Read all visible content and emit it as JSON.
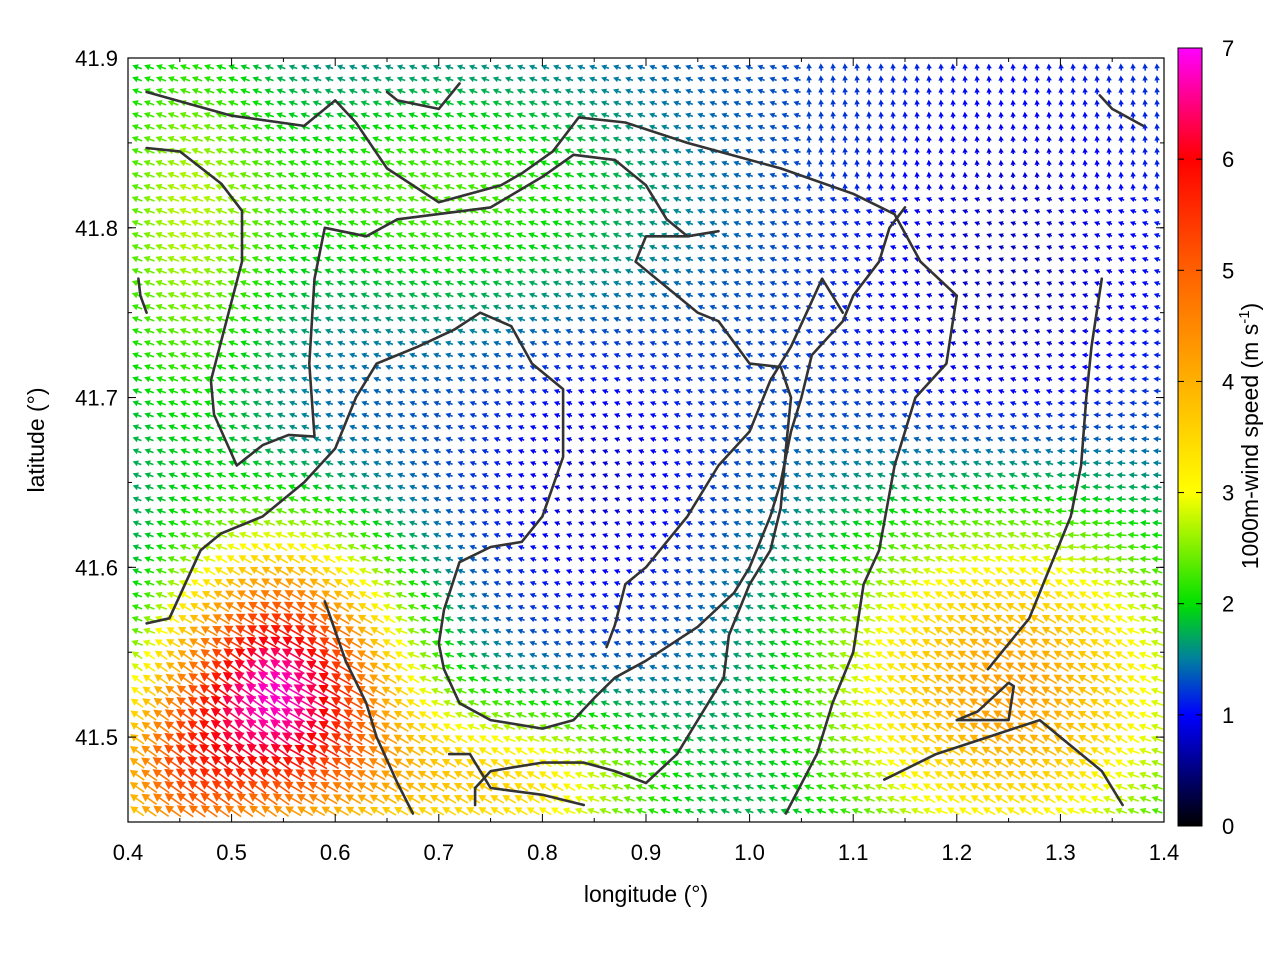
{
  "chart_data": {
    "type": "vector-field",
    "xlabel": "longitude (°)",
    "ylabel": "latitude (°)",
    "colorbar_label_main": "1000m-wind speed (m s",
    "colorbar_label_sup": "-1",
    "colorbar_label_end": ")",
    "xlim": [
      0.4,
      1.4
    ],
    "ylim": [
      41.45,
      41.9
    ],
    "clim": [
      0,
      7
    ],
    "xticks": [
      "0.4",
      "0.5",
      "0.6",
      "0.7",
      "0.8",
      "0.9",
      "1.0",
      "1.1",
      "1.2",
      "1.3",
      "1.4"
    ],
    "yticks": [
      "41.5",
      "41.6",
      "41.7",
      "41.8",
      "41.9"
    ],
    "cticks": [
      "0",
      "1",
      "2",
      "3",
      "4",
      "5",
      "6",
      "7"
    ],
    "colormap": [
      {
        "v": 0,
        "color": "#000000"
      },
      {
        "v": 1,
        "color": "#0000ff"
      },
      {
        "v": 1.5,
        "color": "#007f9f"
      },
      {
        "v": 2,
        "color": "#00e000"
      },
      {
        "v": 2.5,
        "color": "#80f000"
      },
      {
        "v": 3,
        "color": "#ffff00"
      },
      {
        "v": 4,
        "color": "#ffb000"
      },
      {
        "v": 5,
        "color": "#ff6000"
      },
      {
        "v": 6,
        "color": "#ff0000"
      },
      {
        "v": 7,
        "color": "#ff00ff"
      }
    ],
    "grid": false,
    "legend": "colorbar-right",
    "contours": [
      [
        [
          0.418,
          41.88
        ],
        [
          0.5,
          41.866
        ],
        [
          0.57,
          41.86
        ],
        [
          0.6,
          41.875
        ],
        [
          0.62,
          41.862
        ],
        [
          0.65,
          41.835
        ],
        [
          0.7,
          41.815
        ],
        [
          0.76,
          41.825
        ],
        [
          0.78,
          41.832
        ],
        [
          0.81,
          41.845
        ],
        [
          0.835,
          41.865
        ],
        [
          0.88,
          41.862
        ],
        [
          0.94,
          41.85
        ],
        [
          1.03,
          41.835
        ],
        [
          1.1,
          41.82
        ],
        [
          1.14,
          41.808
        ],
        [
          1.165,
          41.78
        ],
        [
          1.2,
          41.76
        ],
        [
          1.19,
          41.72
        ],
        [
          1.16,
          41.7
        ],
        [
          1.14,
          41.66
        ],
        [
          1.125,
          41.61
        ],
        [
          1.11,
          41.59
        ],
        [
          1.1,
          41.55
        ],
        [
          1.08,
          41.52
        ],
        [
          1.065,
          41.49
        ],
        [
          1.035,
          41.455
        ]
      ],
      [
        [
          0.418,
          41.847
        ],
        [
          0.45,
          41.845
        ],
        [
          0.49,
          41.826
        ],
        [
          0.51,
          41.81
        ],
        [
          0.51,
          41.78
        ],
        [
          0.495,
          41.745
        ],
        [
          0.48,
          41.71
        ],
        [
          0.483,
          41.69
        ],
        [
          0.505,
          41.66
        ],
        [
          0.53,
          41.672
        ],
        [
          0.555,
          41.678
        ],
        [
          0.58,
          41.677
        ],
        [
          0.575,
          41.72
        ],
        [
          0.58,
          41.77
        ],
        [
          0.59,
          41.8
        ],
        [
          0.63,
          41.795
        ],
        [
          0.66,
          41.805
        ],
        [
          0.75,
          41.812
        ],
        [
          0.8,
          41.83
        ],
        [
          0.83,
          41.843
        ],
        [
          0.87,
          41.84
        ],
        [
          0.9,
          41.825
        ],
        [
          0.92,
          41.805
        ],
        [
          0.94,
          41.795
        ],
        [
          0.97,
          41.798
        ],
        [
          0.94,
          41.795
        ],
        [
          0.9,
          41.795
        ],
        [
          0.89,
          41.78
        ],
        [
          0.91,
          41.77
        ],
        [
          0.95,
          41.75
        ],
        [
          0.97,
          41.745
        ],
        [
          1.0,
          41.72
        ],
        [
          1.03,
          41.718
        ],
        [
          1.04,
          41.7
        ],
        [
          1.035,
          41.67
        ],
        [
          1.03,
          41.635
        ],
        [
          1.02,
          41.61
        ],
        [
          1.0,
          41.59
        ],
        [
          0.98,
          41.56
        ],
        [
          0.975,
          41.535
        ],
        [
          0.95,
          41.51
        ],
        [
          0.93,
          41.49
        ],
        [
          0.9,
          41.473
        ],
        [
          0.87,
          41.48
        ],
        [
          0.84,
          41.485
        ],
        [
          0.8,
          41.485
        ],
        [
          0.75,
          41.48
        ],
        [
          0.735,
          41.47
        ],
        [
          0.735,
          41.46
        ]
      ],
      [
        [
          0.418,
          41.567
        ],
        [
          0.44,
          41.57
        ],
        [
          0.47,
          41.61
        ],
        [
          0.49,
          41.62
        ],
        [
          0.53,
          41.63
        ],
        [
          0.57,
          41.65
        ],
        [
          0.6,
          41.67
        ],
        [
          0.62,
          41.7
        ],
        [
          0.64,
          41.72
        ],
        [
          0.68,
          41.73
        ],
        [
          0.715,
          41.74
        ],
        [
          0.74,
          41.75
        ],
        [
          0.77,
          41.742
        ],
        [
          0.79,
          41.72
        ],
        [
          0.82,
          41.705
        ],
        [
          0.82,
          41.665
        ],
        [
          0.8,
          41.63
        ],
        [
          0.78,
          41.615
        ],
        [
          0.75,
          41.612
        ],
        [
          0.72,
          41.603
        ],
        [
          0.705,
          41.575
        ],
        [
          0.7,
          41.555
        ],
        [
          0.705,
          41.54
        ],
        [
          0.72,
          41.52
        ],
        [
          0.75,
          41.51
        ],
        [
          0.8,
          41.505
        ],
        [
          0.83,
          41.51
        ],
        [
          0.85,
          41.523
        ],
        [
          0.87,
          41.535
        ],
        [
          0.9,
          41.545
        ],
        [
          0.95,
          41.565
        ],
        [
          0.985,
          41.585
        ],
        [
          1.0,
          41.6
        ],
        [
          1.01,
          41.615
        ],
        [
          1.02,
          41.63
        ],
        [
          1.03,
          41.65
        ],
        [
          1.04,
          41.68
        ],
        [
          1.05,
          41.7
        ],
        [
          1.06,
          41.725
        ],
        [
          1.075,
          41.735
        ],
        [
          1.09,
          41.745
        ],
        [
          1.1,
          41.76
        ],
        [
          1.125,
          41.78
        ],
        [
          1.135,
          41.8
        ],
        [
          1.15,
          41.812
        ]
      ],
      [
        [
          0.59,
          41.58
        ],
        [
          0.61,
          41.545
        ],
        [
          0.63,
          41.52
        ],
        [
          0.64,
          41.5
        ],
        [
          0.66,
          41.473
        ],
        [
          0.675,
          41.455
        ]
      ],
      [
        [
          0.71,
          41.49
        ],
        [
          0.73,
          41.49
        ],
        [
          0.75,
          41.47
        ],
        [
          0.8,
          41.466
        ],
        [
          0.84,
          41.46
        ]
      ],
      [
        [
          0.862,
          41.553
        ],
        [
          0.87,
          41.566
        ],
        [
          0.88,
          41.59
        ],
        [
          0.9,
          41.6
        ],
        [
          0.94,
          41.63
        ],
        [
          0.97,
          41.66
        ],
        [
          1.0,
          41.68
        ],
        [
          1.02,
          41.71
        ],
        [
          1.04,
          41.73
        ],
        [
          1.055,
          41.75
        ],
        [
          1.07,
          41.77
        ],
        [
          1.08,
          41.76
        ],
        [
          1.09,
          41.75
        ]
      ],
      [
        [
          1.13,
          41.475
        ],
        [
          1.18,
          41.49
        ],
        [
          1.23,
          41.5
        ],
        [
          1.28,
          41.51
        ],
        [
          1.3,
          41.5
        ],
        [
          1.32,
          41.49
        ],
        [
          1.34,
          41.48
        ],
        [
          1.36,
          41.46
        ]
      ],
      [
        [
          1.23,
          41.54
        ],
        [
          1.27,
          41.57
        ],
        [
          1.29,
          41.6
        ],
        [
          1.31,
          41.63
        ],
        [
          1.32,
          41.66
        ],
        [
          1.325,
          41.7
        ],
        [
          1.33,
          41.73
        ],
        [
          1.34,
          41.77
        ]
      ],
      [
        [
          1.2,
          41.51
        ],
        [
          1.25,
          41.51
        ],
        [
          1.255,
          41.53
        ],
        [
          1.25,
          41.532
        ],
        [
          1.22,
          41.515
        ],
        [
          1.2,
          41.51
        ]
      ],
      [
        [
          1.338,
          41.878
        ],
        [
          1.35,
          41.87
        ],
        [
          1.38,
          41.86
        ]
      ],
      [
        [
          0.65,
          41.88
        ],
        [
          0.66,
          41.875
        ],
        [
          0.7,
          41.87
        ],
        [
          0.72,
          41.885
        ]
      ],
      [
        [
          0.41,
          41.77
        ],
        [
          0.412,
          41.76
        ],
        [
          0.418,
          41.75
        ]
      ]
    ]
  }
}
